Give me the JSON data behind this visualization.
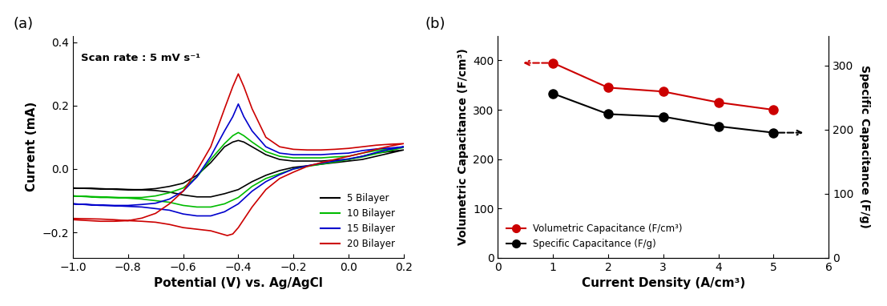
{
  "panel_a": {
    "label": "(a)",
    "xlabel": "Potential (V) vs. Ag/AgCl",
    "ylabel": "Current (mA)",
    "xlim": [
      -1.0,
      0.2
    ],
    "ylim": [
      -0.28,
      0.42
    ],
    "xticks": [
      -1.0,
      -0.8,
      -0.6,
      -0.4,
      -0.2,
      0.0,
      0.2
    ],
    "yticks": [
      -0.2,
      0.0,
      0.2,
      0.4
    ],
    "annotation": "Scan rate : 5 mV s⁻¹",
    "legend": [
      "5 Bilayer",
      "10 Bilayer",
      "15 Bilayer",
      "20 Bilayer"
    ],
    "colors": [
      "#000000",
      "#00bb00",
      "#0000cc",
      "#cc0000"
    ],
    "cv_5_x": [
      -1.0,
      -0.9,
      -0.85,
      -0.8,
      -0.75,
      -0.7,
      -0.65,
      -0.6,
      -0.55,
      -0.5,
      -0.45,
      -0.42,
      -0.4,
      -0.38,
      -0.35,
      -0.3,
      -0.25,
      -0.2,
      -0.15,
      -0.1,
      -0.05,
      0.0,
      0.05,
      0.1,
      0.15,
      0.2,
      0.2,
      0.15,
      0.1,
      0.05,
      0.0,
      -0.05,
      -0.1,
      -0.15,
      -0.2,
      -0.25,
      -0.3,
      -0.35,
      -0.4,
      -0.45,
      -0.5,
      -0.55,
      -0.6,
      -0.65,
      -0.7,
      -0.75,
      -0.8,
      -0.85,
      -0.9,
      -1.0
    ],
    "cv_5_y": [
      -0.06,
      -0.063,
      -0.064,
      -0.065,
      -0.065,
      -0.062,
      -0.055,
      -0.045,
      -0.02,
      0.02,
      0.07,
      0.085,
      0.09,
      0.085,
      0.07,
      0.045,
      0.03,
      0.025,
      0.025,
      0.025,
      0.028,
      0.03,
      0.04,
      0.05,
      0.055,
      0.06,
      0.06,
      0.05,
      0.04,
      0.03,
      0.025,
      0.02,
      0.015,
      0.01,
      0.005,
      -0.005,
      -0.02,
      -0.04,
      -0.065,
      -0.078,
      -0.088,
      -0.088,
      -0.082,
      -0.073,
      -0.068,
      -0.066,
      -0.065,
      -0.064,
      -0.062,
      -0.06
    ],
    "cv_10_x": [
      -1.0,
      -0.9,
      -0.85,
      -0.8,
      -0.75,
      -0.7,
      -0.65,
      -0.6,
      -0.55,
      -0.5,
      -0.45,
      -0.42,
      -0.4,
      -0.38,
      -0.35,
      -0.3,
      -0.25,
      -0.2,
      -0.15,
      -0.1,
      -0.05,
      0.0,
      0.05,
      0.1,
      0.15,
      0.2,
      0.2,
      0.15,
      0.1,
      0.05,
      0.0,
      -0.05,
      -0.1,
      -0.15,
      -0.2,
      -0.25,
      -0.3,
      -0.35,
      -0.4,
      -0.45,
      -0.5,
      -0.55,
      -0.6,
      -0.65,
      -0.7,
      -0.75,
      -0.8,
      -0.85,
      -0.9,
      -1.0
    ],
    "cv_10_y": [
      -0.085,
      -0.09,
      -0.09,
      -0.09,
      -0.09,
      -0.085,
      -0.075,
      -0.06,
      -0.025,
      0.03,
      0.08,
      0.105,
      0.115,
      0.105,
      0.085,
      0.055,
      0.04,
      0.035,
      0.035,
      0.035,
      0.038,
      0.04,
      0.05,
      0.058,
      0.063,
      0.068,
      0.068,
      0.058,
      0.048,
      0.038,
      0.03,
      0.022,
      0.015,
      0.008,
      0.0,
      -0.015,
      -0.03,
      -0.055,
      -0.09,
      -0.11,
      -0.12,
      -0.12,
      -0.115,
      -0.105,
      -0.1,
      -0.095,
      -0.092,
      -0.09,
      -0.088,
      -0.085
    ],
    "cv_15_x": [
      -1.0,
      -0.9,
      -0.85,
      -0.8,
      -0.75,
      -0.7,
      -0.65,
      -0.6,
      -0.55,
      -0.5,
      -0.45,
      -0.42,
      -0.4,
      -0.38,
      -0.35,
      -0.3,
      -0.25,
      -0.2,
      -0.15,
      -0.1,
      -0.05,
      0.0,
      0.05,
      0.1,
      0.15,
      0.2,
      0.2,
      0.15,
      0.1,
      0.05,
      0.0,
      -0.05,
      -0.1,
      -0.15,
      -0.2,
      -0.25,
      -0.3,
      -0.35,
      -0.4,
      -0.45,
      -0.5,
      -0.55,
      -0.6,
      -0.65,
      -0.7,
      -0.75,
      -0.8,
      -0.85,
      -0.9,
      -1.0
    ],
    "cv_15_y": [
      -0.11,
      -0.115,
      -0.115,
      -0.115,
      -0.112,
      -0.108,
      -0.095,
      -0.07,
      -0.025,
      0.04,
      0.12,
      0.165,
      0.205,
      0.165,
      0.12,
      0.07,
      0.05,
      0.045,
      0.045,
      0.045,
      0.048,
      0.05,
      0.058,
      0.063,
      0.066,
      0.07,
      0.07,
      0.062,
      0.052,
      0.04,
      0.032,
      0.025,
      0.018,
      0.01,
      0.0,
      -0.018,
      -0.04,
      -0.07,
      -0.11,
      -0.135,
      -0.148,
      -0.148,
      -0.142,
      -0.13,
      -0.125,
      -0.12,
      -0.118,
      -0.116,
      -0.114,
      -0.11
    ],
    "cv_20_x": [
      -1.0,
      -0.9,
      -0.85,
      -0.8,
      -0.75,
      -0.7,
      -0.65,
      -0.6,
      -0.55,
      -0.5,
      -0.45,
      -0.42,
      -0.4,
      -0.38,
      -0.35,
      -0.3,
      -0.25,
      -0.2,
      -0.15,
      -0.1,
      -0.05,
      0.0,
      0.05,
      0.1,
      0.15,
      0.2,
      0.2,
      0.15,
      0.1,
      0.05,
      0.0,
      -0.05,
      -0.1,
      -0.15,
      -0.2,
      -0.25,
      -0.3,
      -0.35,
      -0.4,
      -0.42,
      -0.44,
      -0.46,
      -0.5,
      -0.55,
      -0.6,
      -0.65,
      -0.7,
      -0.75,
      -0.8,
      -0.85,
      -0.9,
      -1.0
    ],
    "cv_20_y": [
      -0.16,
      -0.165,
      -0.165,
      -0.163,
      -0.155,
      -0.14,
      -0.11,
      -0.07,
      -0.005,
      0.07,
      0.19,
      0.26,
      0.3,
      0.26,
      0.19,
      0.1,
      0.07,
      0.062,
      0.06,
      0.06,
      0.062,
      0.065,
      0.07,
      0.075,
      0.078,
      0.08,
      0.08,
      0.072,
      0.062,
      0.05,
      0.04,
      0.03,
      0.02,
      0.008,
      -0.01,
      -0.03,
      -0.065,
      -0.12,
      -0.185,
      -0.205,
      -0.21,
      -0.205,
      -0.195,
      -0.19,
      -0.185,
      -0.175,
      -0.168,
      -0.165,
      -0.163,
      -0.16,
      -0.158,
      -0.156
    ]
  },
  "panel_b": {
    "label": "(b)",
    "xlabel": "Current Density (A/cm³)",
    "ylabel_left": "Volumetric Capacitance (F/cm³)",
    "ylabel_right": "Specific Capacitance (F/g)",
    "xlim": [
      0,
      6
    ],
    "ylim_left": [
      0,
      450
    ],
    "ylim_right": [
      0,
      346
    ],
    "xticks": [
      0,
      1,
      2,
      3,
      4,
      5,
      6
    ],
    "yticks_left": [
      0,
      100,
      200,
      300,
      400
    ],
    "yticks_right": [
      0,
      100,
      200,
      300
    ],
    "vol_x": [
      1,
      2,
      3,
      4,
      5
    ],
    "vol_y": [
      395,
      345,
      337,
      315,
      300
    ],
    "spec_x": [
      1,
      2,
      3,
      4,
      5
    ],
    "spec_y": [
      256,
      224,
      220,
      205,
      195
    ],
    "vol_color": "#cc0000",
    "spec_color": "#000000",
    "legend_vol": "Volumetric Capacitance (F/cm³)",
    "legend_spec": "Specific Capacitance (F/g)"
  }
}
